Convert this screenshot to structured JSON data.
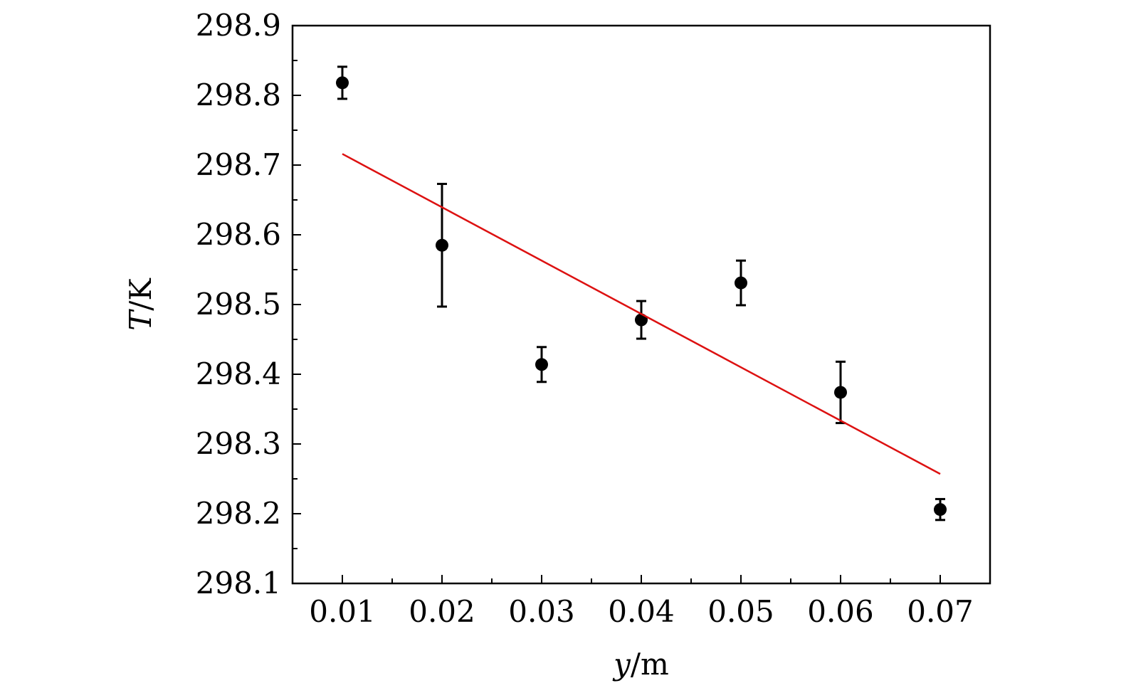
{
  "chart_data": {
    "type": "scatter",
    "xlabel_var": "y",
    "xlabel_unit": "/m",
    "ylabel_var": "T",
    "ylabel_unit": "/K",
    "xlim": [
      0.005,
      0.075
    ],
    "ylim": [
      298.1,
      298.9
    ],
    "x_ticks": [
      0.01,
      0.02,
      0.03,
      0.04,
      0.05,
      0.06,
      0.07
    ],
    "x_tick_labels": [
      "0.01",
      "0.02",
      "0.03",
      "0.04",
      "0.05",
      "0.06",
      "0.07"
    ],
    "y_ticks": [
      298.1,
      298.2,
      298.3,
      298.4,
      298.5,
      298.6,
      298.7,
      298.8,
      298.9
    ],
    "y_tick_labels": [
      "298.1",
      "298.2",
      "298.3",
      "298.4",
      "298.5",
      "298.6",
      "298.7",
      "298.8",
      "298.9"
    ],
    "grid": false,
    "series": [
      {
        "type": "scatter",
        "x": [
          0.01,
          0.02,
          0.03,
          0.04,
          0.05,
          0.06,
          0.07
        ],
        "y": [
          298.818,
          298.585,
          298.414,
          298.478,
          298.531,
          298.374,
          298.206
        ],
        "error": [
          0.023,
          0.088,
          0.025,
          0.027,
          0.032,
          0.044,
          0.015
        ],
        "color": "#000000"
      },
      {
        "type": "line",
        "x": [
          0.01,
          0.07
        ],
        "y": [
          298.716,
          298.257
        ],
        "color": "#dd1111"
      }
    ]
  }
}
